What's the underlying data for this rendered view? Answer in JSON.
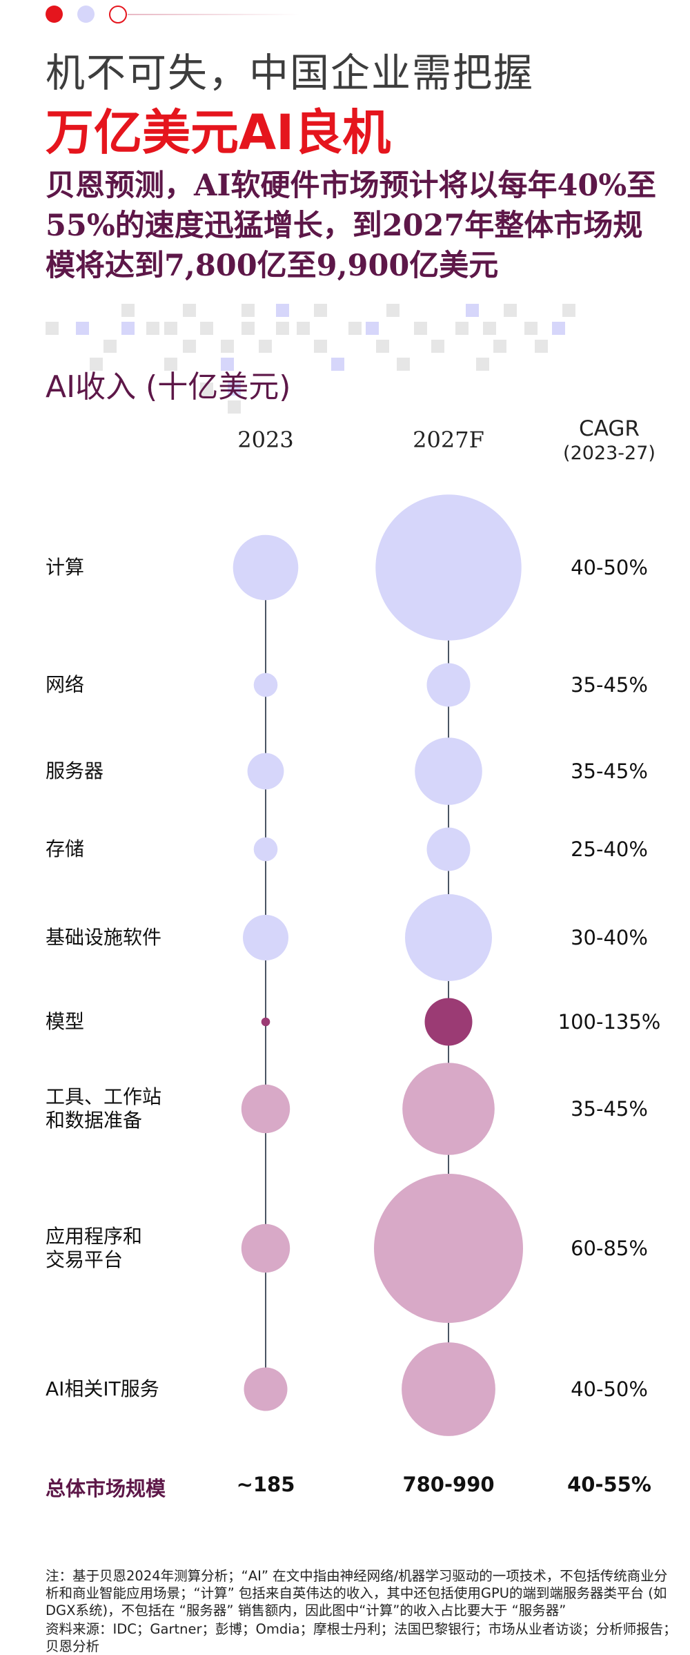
{
  "header": {
    "title_line1": "机不可失，中国企业需把握",
    "title_line2": "万亿美元AI良机",
    "subtitle": "贝恩预测，AI软硬件市场预计将以每年40%至55%的速度迅猛增长，到2027年整体市场规模将达到7,800亿至9,900亿美元"
  },
  "colors": {
    "red": "#e5151d",
    "lavender": "#d6d6fa",
    "plum": "#9b3b74",
    "pink": "#d8a9c7",
    "dark_purple": "#5d1748",
    "connector": "#4a5563"
  },
  "chart_data": {
    "type": "bubble",
    "title": "AI收入 (十亿美元)",
    "columns": {
      "y2023": "2023",
      "y2027": "2027F",
      "cagr_line1": "CAGR",
      "cagr_line2": "(2023-27)"
    },
    "rows": [
      {
        "label": "计算",
        "cagr": "40-50%",
        "v2023": 45,
        "v2027": 225,
        "color": "lavender"
      },
      {
        "label": "网络",
        "cagr": "35-45%",
        "v2023": 6,
        "v2027": 20,
        "color": "lavender"
      },
      {
        "label": "服务器",
        "cagr": "35-45%",
        "v2023": 14,
        "v2027": 48,
        "color": "lavender"
      },
      {
        "label": "存储",
        "cagr": "25-40%",
        "v2023": 6,
        "v2027": 20,
        "color": "lavender"
      },
      {
        "label": "基础设施软件",
        "cagr": "30-40%",
        "v2023": 22,
        "v2027": 80,
        "color": "lavender"
      },
      {
        "label": "模型",
        "cagr": "100-135%",
        "v2023": 0.8,
        "v2027": 24,
        "color": "plum"
      },
      {
        "label": "工具、工作站\n和数据准备",
        "cagr": "35-45%",
        "v2023": 25,
        "v2027": 90,
        "color": "pink"
      },
      {
        "label": "应用程序和\n交易平台",
        "cagr": "60-85%",
        "v2023": 25,
        "v2027": 235,
        "color": "pink"
      },
      {
        "label": "AI相关IT服务",
        "cagr": "40-50%",
        "v2023": 20,
        "v2027": 93,
        "color": "pink"
      }
    ],
    "total": {
      "label": "总体市场规模",
      "v2023": "~185",
      "v2027": "780-990",
      "cagr": "40-55%"
    }
  },
  "footnote": "注：基于贝恩2024年测算分析；“AI” 在文中指由神经网络/机器学习驱动的一项技术，不包括传统商业分析和商业智能应用场景；“计算” 包括来自英伟达的收入，其中还包括使用GPU的端到端服务器类平台 (如DGX系统)，不包括在 “服务器” 销售额内，因此图中“计算”的收入占比要大于 “服务器”\n资料来源：IDC；Gartner；彭博；Omdia；摩根士丹利；法国巴黎银行；市场从业者访谈；分析师报告；贝恩分析"
}
